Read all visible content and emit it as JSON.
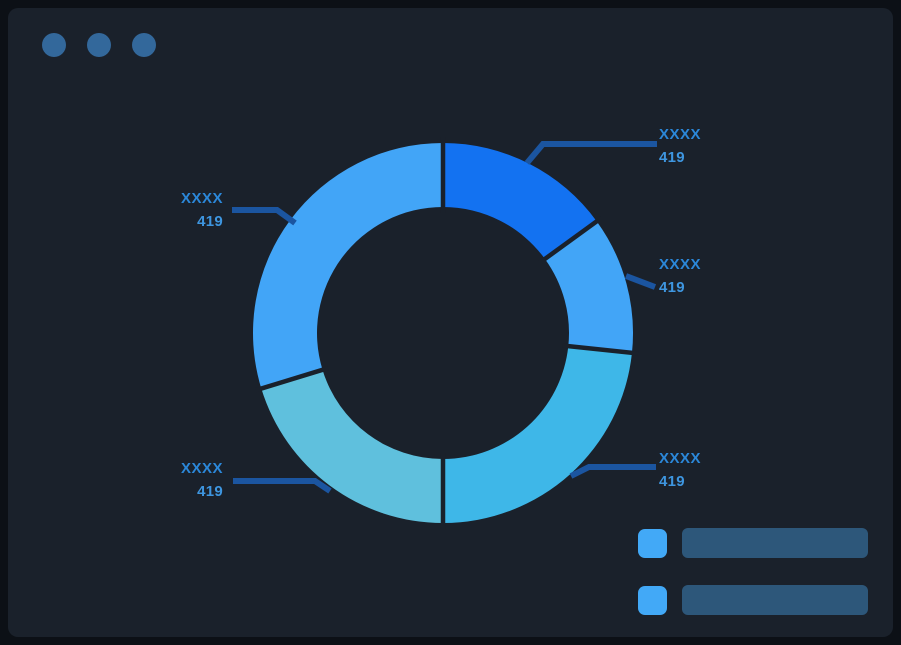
{
  "window": {
    "controls": [
      {
        "name": "dot-1",
        "color": "#33689b"
      },
      {
        "name": "dot-2",
        "color": "#33689b"
      },
      {
        "name": "dot-3",
        "color": "#33689b"
      }
    ]
  },
  "theme": {
    "frame_color": "#0c1016",
    "panel_color": "#1a212b",
    "callout_line_color": "#1b55a0",
    "label_name_color": "#2b87d8",
    "label_value_color": "#3e96e0"
  },
  "chart_data": {
    "type": "pie",
    "variant": "donut",
    "title": "",
    "legend_position": "bottom-right",
    "segments": [
      {
        "label": "XXXX",
        "value": 419,
        "color": "#1372f1",
        "start_angle": 0,
        "end_angle": 54
      },
      {
        "label": "XXXX",
        "value": 419,
        "color": "#42a5f7",
        "start_angle": 54,
        "end_angle": 96
      },
      {
        "label": "XXXX",
        "value": 419,
        "color": "#3eb7e8",
        "start_angle": 96,
        "end_angle": 180
      },
      {
        "label": "XXXX",
        "value": 419,
        "color": "#5fc0dd",
        "start_angle": 180,
        "end_angle": 253
      },
      {
        "label": "XXXX",
        "value": 419,
        "color": "#42a5f7",
        "start_angle": 253,
        "end_angle": 360
      }
    ],
    "legend": {
      "items": [
        {
          "label": "",
          "swatch_color": "#42a9f7",
          "bar_color": "#2d577a"
        },
        {
          "label": "",
          "swatch_color": "#42a9f7",
          "bar_color": "#2d577a"
        }
      ]
    }
  }
}
